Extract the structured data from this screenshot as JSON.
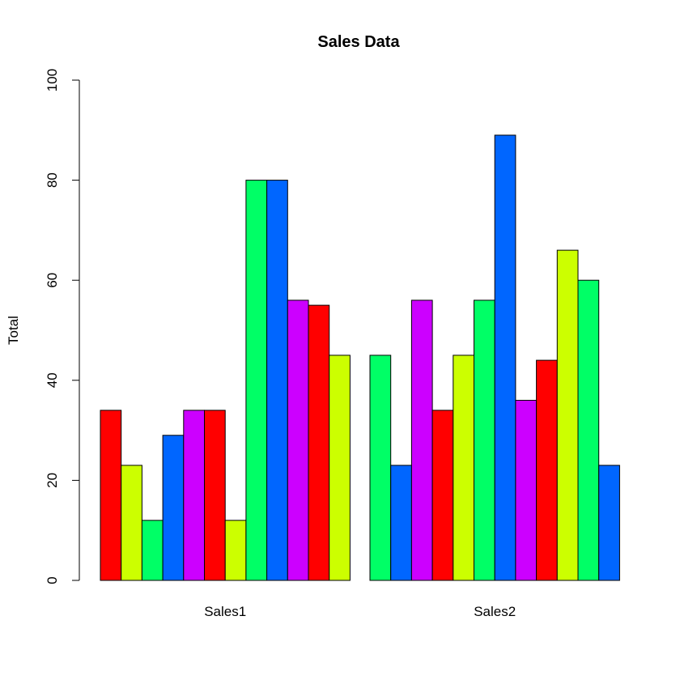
{
  "chart_data": {
    "type": "bar",
    "title": "Sales Data",
    "xlabel": "",
    "ylabel": "Total",
    "ylim": [
      0,
      100
    ],
    "yticks": [
      0,
      20,
      40,
      60,
      80,
      100
    ],
    "grid": false,
    "legend": "none",
    "groups": [
      {
        "label": "Sales1",
        "values": [
          34,
          23,
          12,
          29,
          34,
          34,
          12,
          80,
          80,
          56,
          55,
          45
        ]
      },
      {
        "label": "Sales2",
        "values": [
          45,
          23,
          56,
          34,
          45,
          56,
          89,
          36,
          44,
          66,
          60,
          23
        ]
      }
    ],
    "palette": [
      "#FF0000",
      "#CCFF00",
      "#00FF66",
      "#0066FF",
      "#CC00FF"
    ],
    "bar_colors": {
      "Sales1": [
        "#FF0000",
        "#CCFF00",
        "#00FF66",
        "#0066FF",
        "#CC00FF",
        "#FF0000",
        "#CCFF00",
        "#00FF66",
        "#0066FF",
        "#CC00FF",
        "#FF0000",
        "#CCFF00"
      ],
      "Sales2": [
        "#00FF66",
        "#0066FF",
        "#CC00FF",
        "#FF0000",
        "#CCFF00",
        "#00FF66",
        "#0066FF",
        "#CC00FF",
        "#FF0000",
        "#CCFF00",
        "#00FF66",
        "#0066FF"
      ]
    }
  }
}
